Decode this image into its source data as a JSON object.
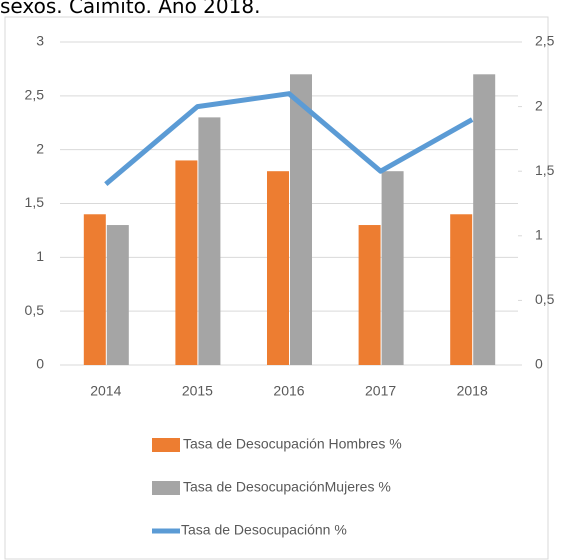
{
  "chart_data": {
    "type": "bar_line",
    "title": "sexos. Caimito. Año 2018.",
    "categories": [
      "2014",
      "2015",
      "2016",
      "2017",
      "2018"
    ],
    "series": [
      {
        "name": "Tasa de Desocupación Hombres %",
        "type": "bar",
        "color": "#ed7d31",
        "values": [
          1.4,
          1.9,
          1.8,
          1.3,
          1.4
        ]
      },
      {
        "name": "Tasa de DesocupaciónMujeres %",
        "type": "bar",
        "color": "#a5a5a5",
        "values": [
          1.3,
          2.3,
          2.7,
          1.8,
          2.7
        ]
      },
      {
        "name": "Tasa de Desocupaciónn %",
        "type": "line",
        "axis": "y2",
        "color": "#5b9bd5",
        "values": [
          1.4,
          2.0,
          2.1,
          1.5,
          1.9
        ]
      }
    ],
    "ylim": [
      0,
      3
    ],
    "yticks": [
      0,
      {
        "value": 0.5,
        "label": "0,5"
      },
      1,
      {
        "value": 1.5,
        "label": "1,5"
      },
      2,
      {
        "value": 2.5,
        "label": "2,5"
      },
      3
    ],
    "y2lim": [
      0,
      2.5
    ],
    "y2ticks": [
      0,
      {
        "value": 0.5,
        "label": "0,5"
      },
      1,
      {
        "value": 1.5,
        "label": "1,5"
      },
      2,
      {
        "value": 2.5,
        "label": "2,5"
      }
    ],
    "grid": true
  }
}
